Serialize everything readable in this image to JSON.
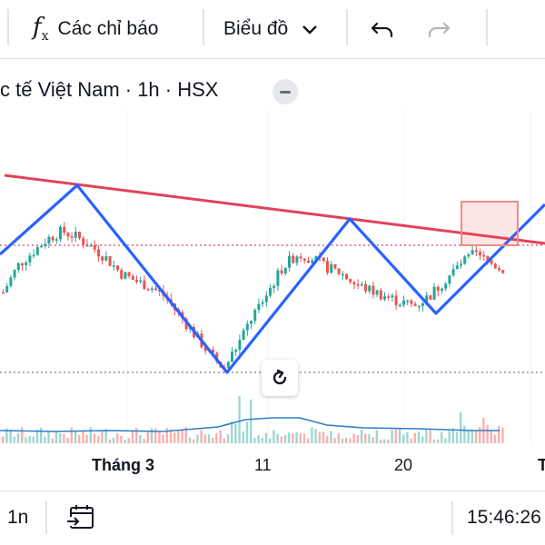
{
  "toolbar": {
    "indicators_label": "Các chỉ báo",
    "chart_menu_label": "Biểu đồ",
    "undo_icon": "undo-icon",
    "redo_icon": "redo-icon"
  },
  "symbol": {
    "title": "c tế Việt Nam · 1h · HSX"
  },
  "axis": {
    "labels": [
      "Tháng 3",
      "11",
      "20",
      "T"
    ]
  },
  "bottom": {
    "interval_label": "1n",
    "time": "15:46:26"
  },
  "colors": {
    "up": "#26a69a",
    "down": "#ef5350",
    "trendline": "#e0435a",
    "pattern": "#2962ff",
    "volume_ma": "#2a7fc9"
  },
  "chart_data": {
    "type": "candlestick",
    "x_tick_labels": [
      "Tháng 3",
      "11",
      "20",
      "T"
    ],
    "price_path_relative": [
      0.42,
      0.56,
      0.63,
      0.7,
      0.74,
      0.71,
      0.66,
      0.6,
      0.52,
      0.48,
      0.45,
      0.4,
      0.3,
      0.2,
      0.1,
      0.02,
      0.15,
      0.3,
      0.42,
      0.55,
      0.62,
      0.6,
      0.55,
      0.52,
      0.46,
      0.43,
      0.4,
      0.37,
      0.35,
      0.4,
      0.48,
      0.56,
      0.62,
      0.58,
      0.54
    ],
    "pattern": "inverse head and shoulders",
    "trendline": "descending neckline",
    "grid": false
  }
}
